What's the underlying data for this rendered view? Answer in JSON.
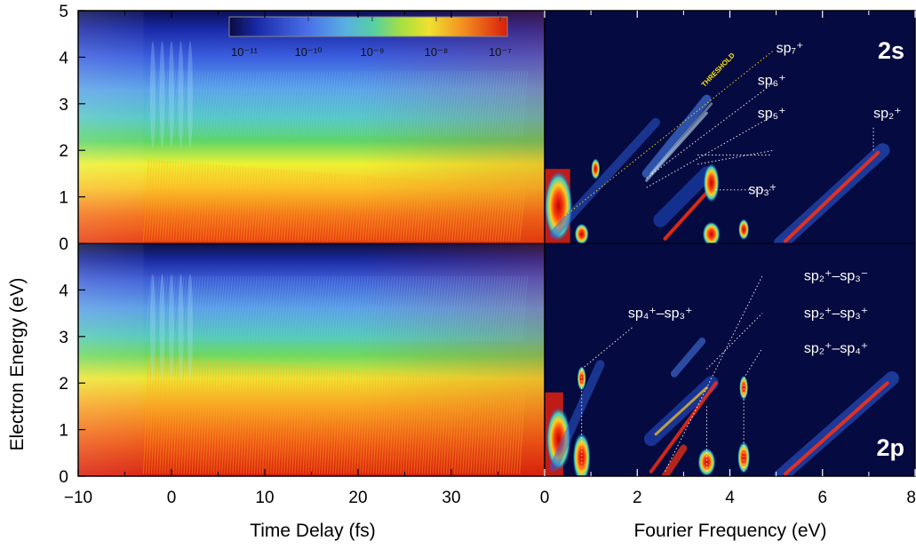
{
  "chart_data": {
    "type": "heatmap",
    "ylabel": "Electron Energy (eV)",
    "colorbar": {
      "scale": "log",
      "colormap": "jet",
      "ticks": [
        "10⁻¹¹",
        "10⁻¹⁰",
        "10⁻⁹",
        "10⁻⁸",
        "10⁻⁷"
      ],
      "range": [
        1e-11,
        2e-07
      ]
    },
    "panels": [
      {
        "id": "time-2s",
        "tag": "",
        "xlabel": "Time Delay (fs)",
        "xlim": [
          -10,
          40
        ],
        "xticks": [
          "−10",
          "0",
          "10",
          "20",
          "30"
        ],
        "ylim": [
          0,
          5
        ],
        "yticks": [
          "0",
          "1",
          "2",
          "3",
          "4",
          "5"
        ]
      },
      {
        "id": "freq-2s",
        "tag": "2s",
        "xlabel": "Fourier Frequency (eV)",
        "xlim": [
          0,
          8
        ],
        "ylim": [
          0,
          5
        ],
        "threshold_label": "THRESHOLD",
        "annotations": [
          {
            "text": "sp₇⁺",
            "x": 5.0,
            "y": 4.2
          },
          {
            "text": "sp₆⁺",
            "x": 4.6,
            "y": 3.5
          },
          {
            "text": "sp₅⁺",
            "x": 4.6,
            "y": 2.8
          },
          {
            "text": "sp₃⁺",
            "x": 4.4,
            "y": 1.15
          },
          {
            "text": "sp₂⁺",
            "x": 7.1,
            "y": 2.8
          }
        ]
      },
      {
        "id": "time-2p",
        "tag": "",
        "xlabel": "Time Delay (fs)",
        "xlim": [
          -10,
          40
        ],
        "ylim": [
          0,
          5
        ],
        "yticks": [
          "0",
          "1",
          "2",
          "3",
          "4"
        ]
      },
      {
        "id": "freq-2p",
        "tag": "2p",
        "xlabel": "Fourier Frequency (eV)",
        "xlim": [
          0,
          8
        ],
        "xticks": [
          "0",
          "2",
          "4",
          "6",
          "8"
        ],
        "ylim": [
          0,
          5
        ],
        "annotations": [
          {
            "text": "sp₄⁺–sp₃⁺",
            "x": 1.8,
            "y": 3.5
          },
          {
            "text": "sp₂⁺–sp₃⁻",
            "x": 5.6,
            "y": 4.3
          },
          {
            "text": "sp₂⁺–sp₃⁺",
            "x": 5.6,
            "y": 3.5
          },
          {
            "text": "sp₂⁺–sp₄⁺",
            "x": 5.6,
            "y": 2.75
          }
        ]
      }
    ],
    "xlabels": [
      "Time Delay (fs)",
      "Fourier Frequency (eV)"
    ]
  }
}
